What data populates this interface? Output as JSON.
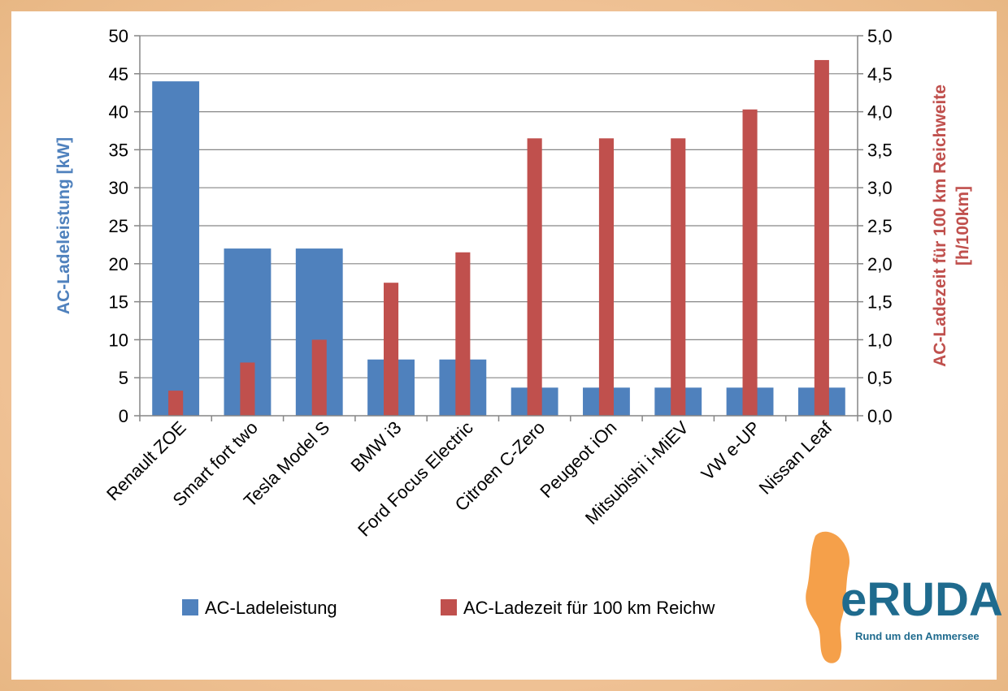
{
  "chart_data": {
    "type": "bar",
    "categories": [
      "Renault ZOE",
      "Smart fort two",
      "Tesla Model S",
      "BMW i3",
      "Ford Focus Electric",
      "Citroen C-Zero",
      "Peugeot iOn",
      "Mitsubishi i-MiEV",
      "VW e-UP",
      "Nissan Leaf"
    ],
    "series": [
      {
        "name": "AC-Ladeleistung",
        "axis": "left",
        "color": "#4f81bd",
        "values": [
          44,
          22,
          22,
          7.4,
          7.4,
          3.7,
          3.7,
          3.7,
          3.7,
          3.7
        ]
      },
      {
        "name": "AC-Ladezeit für 100 km Reichweite",
        "axis": "right",
        "color": "#c0504d",
        "values": [
          0.33,
          0.7,
          1.0,
          1.75,
          2.15,
          3.65,
          3.65,
          3.65,
          4.03,
          4.68
        ]
      }
    ],
    "ylabel": "AC-Ladeleistung [kW]",
    "ylabel_color": "#4f81bd",
    "ylim": [
      0,
      50
    ],
    "yticks": [
      "0",
      "5",
      "10",
      "15",
      "20",
      "25",
      "30",
      "35",
      "40",
      "45",
      "50"
    ],
    "y2label_line1": "AC-Ladezeit für 100 km Reichweite",
    "y2label_line2": "[h/100km]",
    "y2label_color": "#c0504d",
    "y2lim": [
      0,
      5
    ],
    "y2ticks": [
      "0,0",
      "0,5",
      "1,0",
      "1,5",
      "2,0",
      "2,5",
      "3,0",
      "3,5",
      "4,0",
      "4,5",
      "5,0"
    ],
    "grid": true,
    "legend_position": "bottom",
    "legend": [
      "AC-Ladeleistung",
      "AC-Ladezeit für 100 km Reichw"
    ]
  },
  "logo": {
    "text": "eRUDA",
    "tagline": "Rund um den Ammersee",
    "color": "#1f6b8e",
    "accent_color": "#f5a04a"
  }
}
